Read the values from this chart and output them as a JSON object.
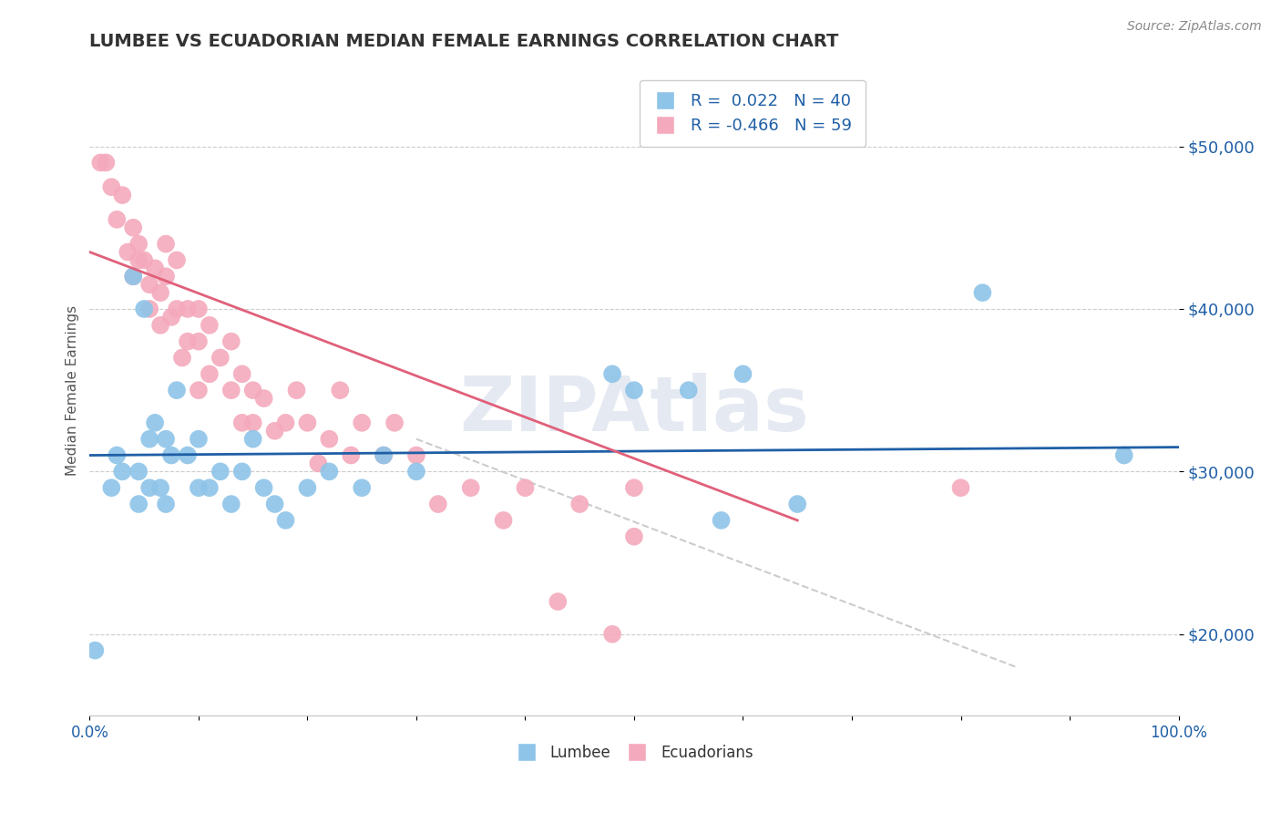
{
  "title": "LUMBEE VS ECUADORIAN MEDIAN FEMALE EARNINGS CORRELATION CHART",
  "source": "Source: ZipAtlas.com",
  "ylabel": "Median Female Earnings",
  "xlim": [
    0.0,
    1.0
  ],
  "ylim": [
    15000,
    55000
  ],
  "yticks": [
    20000,
    30000,
    40000,
    50000
  ],
  "ytick_labels": [
    "$20,000",
    "$30,000",
    "$40,000",
    "$50,000"
  ],
  "xticks": [
    0.0,
    0.1,
    0.2,
    0.3,
    0.4,
    0.5,
    0.6,
    0.7,
    0.8,
    0.9,
    1.0
  ],
  "xtick_labels": [
    "0.0%",
    "",
    "",
    "",
    "",
    "",
    "",
    "",
    "",
    "",
    "100.0%"
  ],
  "lumbee_color": "#8ec4e8",
  "ecuadorian_color": "#f4aabc",
  "lumbee_R": 0.022,
  "lumbee_N": 40,
  "ecuadorian_R": -0.466,
  "ecuadorian_N": 59,
  "lumbee_line_color": "#1f5fa6",
  "ecuadorian_line_color": "#e0607a",
  "lumbee_line_y0": 31000,
  "lumbee_line_y1": 31500,
  "ecuadorian_line_x0": 0.0,
  "ecuadorian_line_y0": 43500,
  "ecuadorian_line_x1": 0.65,
  "ecuadorian_line_y1": 27000,
  "dash_line_x0": 0.3,
  "dash_line_y0": 32000,
  "dash_line_x1": 0.85,
  "dash_line_y1": 18000,
  "watermark_text": "ZIPAtlas",
  "lumbee_points": [
    [
      0.005,
      19000
    ],
    [
      0.02,
      29000
    ],
    [
      0.025,
      31000
    ],
    [
      0.03,
      30000
    ],
    [
      0.04,
      42000
    ],
    [
      0.045,
      30000
    ],
    [
      0.045,
      28000
    ],
    [
      0.05,
      40000
    ],
    [
      0.055,
      32000
    ],
    [
      0.055,
      29000
    ],
    [
      0.06,
      33000
    ],
    [
      0.065,
      29000
    ],
    [
      0.07,
      32000
    ],
    [
      0.07,
      28000
    ],
    [
      0.075,
      31000
    ],
    [
      0.08,
      35000
    ],
    [
      0.09,
      31000
    ],
    [
      0.1,
      29000
    ],
    [
      0.1,
      32000
    ],
    [
      0.11,
      29000
    ],
    [
      0.12,
      30000
    ],
    [
      0.13,
      28000
    ],
    [
      0.14,
      30000
    ],
    [
      0.15,
      32000
    ],
    [
      0.16,
      29000
    ],
    [
      0.17,
      28000
    ],
    [
      0.18,
      27000
    ],
    [
      0.2,
      29000
    ],
    [
      0.22,
      30000
    ],
    [
      0.25,
      29000
    ],
    [
      0.27,
      31000
    ],
    [
      0.3,
      30000
    ],
    [
      0.48,
      36000
    ],
    [
      0.5,
      35000
    ],
    [
      0.55,
      35000
    ],
    [
      0.58,
      27000
    ],
    [
      0.6,
      36000
    ],
    [
      0.65,
      28000
    ],
    [
      0.82,
      41000
    ],
    [
      0.95,
      31000
    ]
  ],
  "ecuadorian_points": [
    [
      0.01,
      49000
    ],
    [
      0.015,
      49000
    ],
    [
      0.02,
      47500
    ],
    [
      0.025,
      45500
    ],
    [
      0.03,
      47000
    ],
    [
      0.035,
      43500
    ],
    [
      0.04,
      45000
    ],
    [
      0.04,
      42000
    ],
    [
      0.045,
      44000
    ],
    [
      0.045,
      43000
    ],
    [
      0.05,
      43000
    ],
    [
      0.055,
      41500
    ],
    [
      0.055,
      40000
    ],
    [
      0.06,
      42500
    ],
    [
      0.065,
      41000
    ],
    [
      0.065,
      39000
    ],
    [
      0.07,
      44000
    ],
    [
      0.07,
      42000
    ],
    [
      0.075,
      39500
    ],
    [
      0.08,
      43000
    ],
    [
      0.08,
      40000
    ],
    [
      0.085,
      37000
    ],
    [
      0.09,
      40000
    ],
    [
      0.09,
      38000
    ],
    [
      0.1,
      40000
    ],
    [
      0.1,
      38000
    ],
    [
      0.1,
      35000
    ],
    [
      0.11,
      39000
    ],
    [
      0.11,
      36000
    ],
    [
      0.12,
      37000
    ],
    [
      0.13,
      38000
    ],
    [
      0.13,
      35000
    ],
    [
      0.14,
      36000
    ],
    [
      0.14,
      33000
    ],
    [
      0.15,
      35000
    ],
    [
      0.15,
      33000
    ],
    [
      0.16,
      34500
    ],
    [
      0.17,
      32500
    ],
    [
      0.18,
      33000
    ],
    [
      0.19,
      35000
    ],
    [
      0.2,
      33000
    ],
    [
      0.21,
      30500
    ],
    [
      0.22,
      32000
    ],
    [
      0.23,
      35000
    ],
    [
      0.24,
      31000
    ],
    [
      0.25,
      33000
    ],
    [
      0.27,
      31000
    ],
    [
      0.28,
      33000
    ],
    [
      0.3,
      31000
    ],
    [
      0.32,
      28000
    ],
    [
      0.35,
      29000
    ],
    [
      0.38,
      27000
    ],
    [
      0.4,
      29000
    ],
    [
      0.43,
      22000
    ],
    [
      0.45,
      28000
    ],
    [
      0.48,
      20000
    ],
    [
      0.5,
      29000
    ],
    [
      0.5,
      26000
    ],
    [
      0.8,
      29000
    ]
  ]
}
